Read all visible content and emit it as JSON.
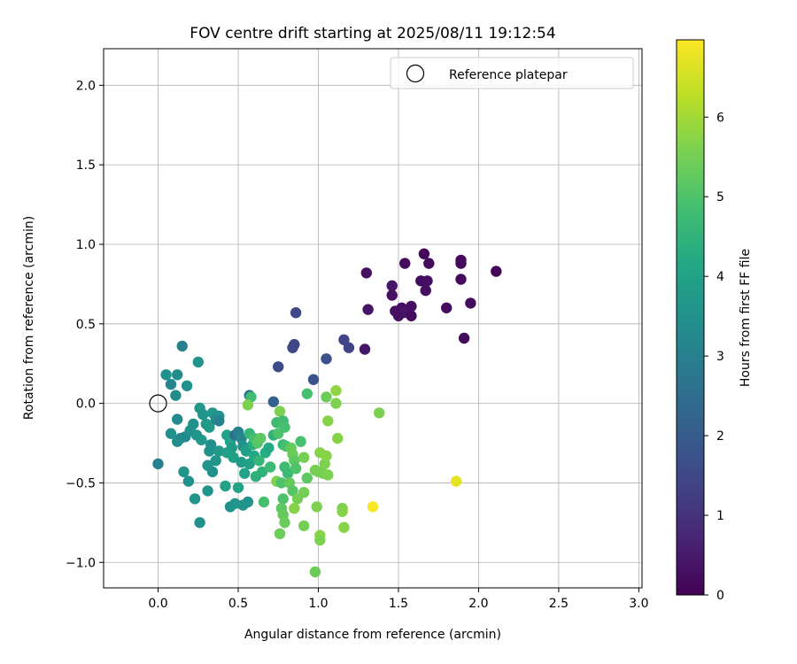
{
  "chart_data": {
    "type": "scatter",
    "title": "FOV centre drift starting at 2025/08/11 19:12:54",
    "xlabel": "Angular distance from reference (arcmin)",
    "ylabel": "Rotation from reference (arcmin)",
    "xlim": [
      -0.34,
      3.02
    ],
    "ylim": [
      -1.16,
      2.23
    ],
    "xticks": [
      0.0,
      0.5,
      1.0,
      1.5,
      2.0,
      2.5,
      3.0
    ],
    "xtick_labels": [
      "0.0",
      "0.5",
      "1.0",
      "1.5",
      "2.0",
      "2.5",
      "3.0"
    ],
    "yticks": [
      -1.0,
      -0.5,
      0.0,
      0.5,
      1.0,
      1.5,
      2.0
    ],
    "ytick_labels": [
      "−1.0",
      "−0.5",
      "0.0",
      "0.5",
      "1.0",
      "1.5",
      "2.0"
    ],
    "grid": true,
    "legend": {
      "position": "top-right",
      "entries": [
        {
          "label": "Reference platepar",
          "marker": "open-circle"
        }
      ]
    },
    "reference_point": {
      "x": 0.0,
      "y": 0.0
    },
    "colorbar": {
      "label": "Hours from first FF file",
      "colormap": "viridis",
      "range": [
        0,
        6.97
      ],
      "ticks": [
        0,
        1,
        2,
        3,
        4,
        5,
        6
      ],
      "tick_labels": [
        "0",
        "1",
        "2",
        "3",
        "4",
        "5",
        "6"
      ]
    },
    "points": [
      {
        "x": 1.66,
        "y": 0.94,
        "t": 0.1
      },
      {
        "x": 1.54,
        "y": 0.88,
        "t": 0.2
      },
      {
        "x": 1.69,
        "y": 0.88,
        "t": 0.2
      },
      {
        "x": 1.89,
        "y": 0.9,
        "t": 0.1
      },
      {
        "x": 1.89,
        "y": 0.88,
        "t": 0.2
      },
      {
        "x": 2.11,
        "y": 0.83,
        "t": 0.1
      },
      {
        "x": 1.3,
        "y": 0.82,
        "t": 0.3
      },
      {
        "x": 1.64,
        "y": 0.77,
        "t": 0.2
      },
      {
        "x": 1.68,
        "y": 0.77,
        "t": 0.3
      },
      {
        "x": 1.89,
        "y": 0.78,
        "t": 0.2
      },
      {
        "x": 1.46,
        "y": 0.74,
        "t": 0.4
      },
      {
        "x": 1.67,
        "y": 0.71,
        "t": 0.3
      },
      {
        "x": 1.46,
        "y": 0.68,
        "t": 0.3
      },
      {
        "x": 1.95,
        "y": 0.63,
        "t": 0.2
      },
      {
        "x": 1.58,
        "y": 0.61,
        "t": 0.3
      },
      {
        "x": 1.8,
        "y": 0.6,
        "t": 0.2
      },
      {
        "x": 1.31,
        "y": 0.59,
        "t": 0.4
      },
      {
        "x": 1.52,
        "y": 0.6,
        "t": 0.3
      },
      {
        "x": 1.48,
        "y": 0.58,
        "t": 0.3
      },
      {
        "x": 1.53,
        "y": 0.57,
        "t": 0.4
      },
      {
        "x": 1.5,
        "y": 0.55,
        "t": 0.3
      },
      {
        "x": 1.58,
        "y": 0.55,
        "t": 0.2
      },
      {
        "x": 1.91,
        "y": 0.41,
        "t": 0.2
      },
      {
        "x": 1.29,
        "y": 0.34,
        "t": 0.4
      },
      {
        "x": 0.86,
        "y": 0.57,
        "t": 1.5
      },
      {
        "x": 1.16,
        "y": 0.4,
        "t": 1.4
      },
      {
        "x": 0.85,
        "y": 0.37,
        "t": 1.5
      },
      {
        "x": 0.84,
        "y": 0.35,
        "t": 1.5
      },
      {
        "x": 1.19,
        "y": 0.35,
        "t": 1.4
      },
      {
        "x": 1.05,
        "y": 0.28,
        "t": 1.7
      },
      {
        "x": 0.75,
        "y": 0.23,
        "t": 1.6
      },
      {
        "x": 0.97,
        "y": 0.15,
        "t": 1.8
      },
      {
        "x": 0.72,
        "y": 0.01,
        "t": 2.2
      },
      {
        "x": 0.57,
        "y": 0.05,
        "t": 2.5
      },
      {
        "x": 0.15,
        "y": 0.36,
        "t": 3.1
      },
      {
        "x": 0.25,
        "y": 0.26,
        "t": 3.6
      },
      {
        "x": 0.05,
        "y": 0.18,
        "t": 3.5
      },
      {
        "x": 0.12,
        "y": 0.18,
        "t": 3.4
      },
      {
        "x": 0.08,
        "y": 0.12,
        "t": 3.2
      },
      {
        "x": 0.18,
        "y": 0.11,
        "t": 3.5
      },
      {
        "x": 0.11,
        "y": 0.05,
        "t": 3.4
      },
      {
        "x": 0.0,
        "y": -0.38,
        "t": 3.0
      },
      {
        "x": 0.12,
        "y": -0.1,
        "t": 3.3
      },
      {
        "x": 0.08,
        "y": -0.19,
        "t": 3.5
      },
      {
        "x": 0.14,
        "y": -0.22,
        "t": 3.2
      },
      {
        "x": 0.12,
        "y": -0.24,
        "t": 3.4
      },
      {
        "x": 0.17,
        "y": -0.21,
        "t": 3.3
      },
      {
        "x": 0.2,
        "y": -0.17,
        "t": 3.5
      },
      {
        "x": 0.22,
        "y": -0.13,
        "t": 3.5
      },
      {
        "x": 0.24,
        "y": -0.2,
        "t": 3.6
      },
      {
        "x": 0.27,
        "y": -0.23,
        "t": 3.7
      },
      {
        "x": 0.26,
        "y": -0.03,
        "t": 3.7
      },
      {
        "x": 0.28,
        "y": -0.07,
        "t": 3.6
      },
      {
        "x": 0.3,
        "y": -0.13,
        "t": 3.7
      },
      {
        "x": 0.32,
        "y": -0.15,
        "t": 3.8
      },
      {
        "x": 0.34,
        "y": -0.06,
        "t": 3.7
      },
      {
        "x": 0.36,
        "y": -0.1,
        "t": 3.4
      },
      {
        "x": 0.38,
        "y": -0.08,
        "t": 3.5
      },
      {
        "x": 0.38,
        "y": -0.11,
        "t": 3.0
      },
      {
        "x": 0.33,
        "y": -0.26,
        "t": 3.4
      },
      {
        "x": 0.32,
        "y": -0.3,
        "t": 3.5
      },
      {
        "x": 0.36,
        "y": -0.36,
        "t": 3.6
      },
      {
        "x": 0.31,
        "y": -0.39,
        "t": 3.6
      },
      {
        "x": 0.34,
        "y": -0.43,
        "t": 3.5
      },
      {
        "x": 0.38,
        "y": -0.3,
        "t": 3.8
      },
      {
        "x": 0.16,
        "y": -0.43,
        "t": 3.6
      },
      {
        "x": 0.19,
        "y": -0.49,
        "t": 3.5
      },
      {
        "x": 0.23,
        "y": -0.6,
        "t": 3.6
      },
      {
        "x": 0.31,
        "y": -0.55,
        "t": 3.6
      },
      {
        "x": 0.26,
        "y": -0.75,
        "t": 3.5
      },
      {
        "x": 0.42,
        "y": -0.52,
        "t": 4.0
      },
      {
        "x": 0.5,
        "y": -0.53,
        "t": 4.0
      },
      {
        "x": 0.45,
        "y": -0.65,
        "t": 3.5
      },
      {
        "x": 0.48,
        "y": -0.63,
        "t": 3.6
      },
      {
        "x": 0.53,
        "y": -0.64,
        "t": 3.6
      },
      {
        "x": 0.56,
        "y": -0.62,
        "t": 3.6
      },
      {
        "x": 0.43,
        "y": -0.2,
        "t": 4.0
      },
      {
        "x": 0.45,
        "y": -0.24,
        "t": 4.1
      },
      {
        "x": 0.46,
        "y": -0.28,
        "t": 3.8
      },
      {
        "x": 0.43,
        "y": -0.31,
        "t": 3.9
      },
      {
        "x": 0.47,
        "y": -0.34,
        "t": 3.9
      },
      {
        "x": 0.48,
        "y": -0.2,
        "t": 2.5
      },
      {
        "x": 0.5,
        "y": -0.18,
        "t": 3.0
      },
      {
        "x": 0.52,
        "y": -0.22,
        "t": 3.2
      },
      {
        "x": 0.53,
        "y": -0.27,
        "t": 3.6
      },
      {
        "x": 0.55,
        "y": -0.3,
        "t": 3.9
      },
      {
        "x": 0.52,
        "y": -0.37,
        "t": 3.8
      },
      {
        "x": 0.54,
        "y": -0.44,
        "t": 4.0
      },
      {
        "x": 0.57,
        "y": -0.38,
        "t": 3.9
      },
      {
        "x": 0.59,
        "y": -0.26,
        "t": 4.3
      },
      {
        "x": 0.6,
        "y": -0.33,
        "t": 4.2
      },
      {
        "x": 0.61,
        "y": -0.46,
        "t": 4.4
      },
      {
        "x": 0.58,
        "y": 0.04,
        "t": 4.8
      },
      {
        "x": 0.56,
        "y": -0.01,
        "t": 5.6
      },
      {
        "x": 0.57,
        "y": -0.19,
        "t": 4.6
      },
      {
        "x": 0.6,
        "y": -0.22,
        "t": 4.9
      },
      {
        "x": 0.62,
        "y": -0.25,
        "t": 5.1
      },
      {
        "x": 0.64,
        "y": -0.22,
        "t": 5.2
      },
      {
        "x": 0.63,
        "y": -0.36,
        "t": 4.6
      },
      {
        "x": 0.65,
        "y": -0.43,
        "t": 4.5
      },
      {
        "x": 0.67,
        "y": -0.31,
        "t": 4.3
      },
      {
        "x": 0.69,
        "y": -0.28,
        "t": 4.2
      },
      {
        "x": 0.7,
        "y": -0.4,
        "t": 4.7
      },
      {
        "x": 0.66,
        "y": -0.62,
        "t": 4.9
      },
      {
        "x": 0.72,
        "y": -0.2,
        "t": 4.5
      },
      {
        "x": 0.74,
        "y": -0.12,
        "t": 4.8
      },
      {
        "x": 0.75,
        "y": -0.19,
        "t": 5.0
      },
      {
        "x": 0.76,
        "y": -0.05,
        "t": 5.6
      },
      {
        "x": 0.78,
        "y": -0.11,
        "t": 4.8
      },
      {
        "x": 0.79,
        "y": -0.15,
        "t": 4.9
      },
      {
        "x": 0.78,
        "y": -0.26,
        "t": 4.7
      },
      {
        "x": 0.8,
        "y": -0.27,
        "t": 4.9
      },
      {
        "x": 0.79,
        "y": -0.4,
        "t": 4.8
      },
      {
        "x": 0.81,
        "y": -0.44,
        "t": 4.7
      },
      {
        "x": 0.74,
        "y": -0.49,
        "t": 5.6
      },
      {
        "x": 0.77,
        "y": -0.5,
        "t": 5.0
      },
      {
        "x": 0.83,
        "y": -0.28,
        "t": 5.3
      },
      {
        "x": 0.84,
        "y": -0.32,
        "t": 5.4
      },
      {
        "x": 0.85,
        "y": -0.36,
        "t": 5.2
      },
      {
        "x": 0.86,
        "y": -0.41,
        "t": 5.0
      },
      {
        "x": 0.82,
        "y": -0.5,
        "t": 5.3
      },
      {
        "x": 0.84,
        "y": -0.55,
        "t": 5.1
      },
      {
        "x": 0.87,
        "y": -0.6,
        "t": 5.5
      },
      {
        "x": 0.85,
        "y": -0.66,
        "t": 5.7
      },
      {
        "x": 0.78,
        "y": -0.6,
        "t": 5.0
      },
      {
        "x": 0.77,
        "y": -0.66,
        "t": 5.2
      },
      {
        "x": 0.78,
        "y": -0.7,
        "t": 5.3
      },
      {
        "x": 0.79,
        "y": -0.75,
        "t": 5.4
      },
      {
        "x": 0.76,
        "y": -0.82,
        "t": 5.4
      },
      {
        "x": 0.89,
        "y": -0.24,
        "t": 4.9
      },
      {
        "x": 0.91,
        "y": -0.34,
        "t": 5.5
      },
      {
        "x": 0.93,
        "y": -0.47,
        "t": 5.2
      },
      {
        "x": 0.91,
        "y": -0.56,
        "t": 5.5
      },
      {
        "x": 0.93,
        "y": 0.06,
        "t": 4.9
      },
      {
        "x": 0.91,
        "y": -0.77,
        "t": 5.5
      },
      {
        "x": 0.98,
        "y": -0.42,
        "t": 5.5
      },
      {
        "x": 1.0,
        "y": -0.43,
        "t": 5.5
      },
      {
        "x": 0.99,
        "y": -0.65,
        "t": 5.6
      },
      {
        "x": 1.01,
        "y": -0.31,
        "t": 5.7
      },
      {
        "x": 1.04,
        "y": -0.38,
        "t": 5.6
      },
      {
        "x": 1.05,
        "y": -0.33,
        "t": 5.7
      },
      {
        "x": 1.03,
        "y": -0.44,
        "t": 5.5
      },
      {
        "x": 1.06,
        "y": -0.45,
        "t": 5.6
      },
      {
        "x": 1.01,
        "y": -0.83,
        "t": 5.7
      },
      {
        "x": 1.01,
        "y": -0.86,
        "t": 5.6
      },
      {
        "x": 0.98,
        "y": -1.06,
        "t": 5.4
      },
      {
        "x": 1.06,
        "y": -0.11,
        "t": 5.7
      },
      {
        "x": 1.05,
        "y": 0.04,
        "t": 5.4
      },
      {
        "x": 1.11,
        "y": 0.08,
        "t": 5.8
      },
      {
        "x": 1.11,
        "y": 0.0,
        "t": 5.6
      },
      {
        "x": 1.12,
        "y": -0.22,
        "t": 5.7
      },
      {
        "x": 1.15,
        "y": -0.66,
        "t": 5.6
      },
      {
        "x": 1.15,
        "y": -0.68,
        "t": 5.7
      },
      {
        "x": 1.16,
        "y": -0.78,
        "t": 5.7
      },
      {
        "x": 1.38,
        "y": -0.06,
        "t": 5.6
      },
      {
        "x": 1.34,
        "y": -0.65,
        "t": 6.9
      },
      {
        "x": 1.86,
        "y": -0.49,
        "t": 6.7
      }
    ]
  }
}
